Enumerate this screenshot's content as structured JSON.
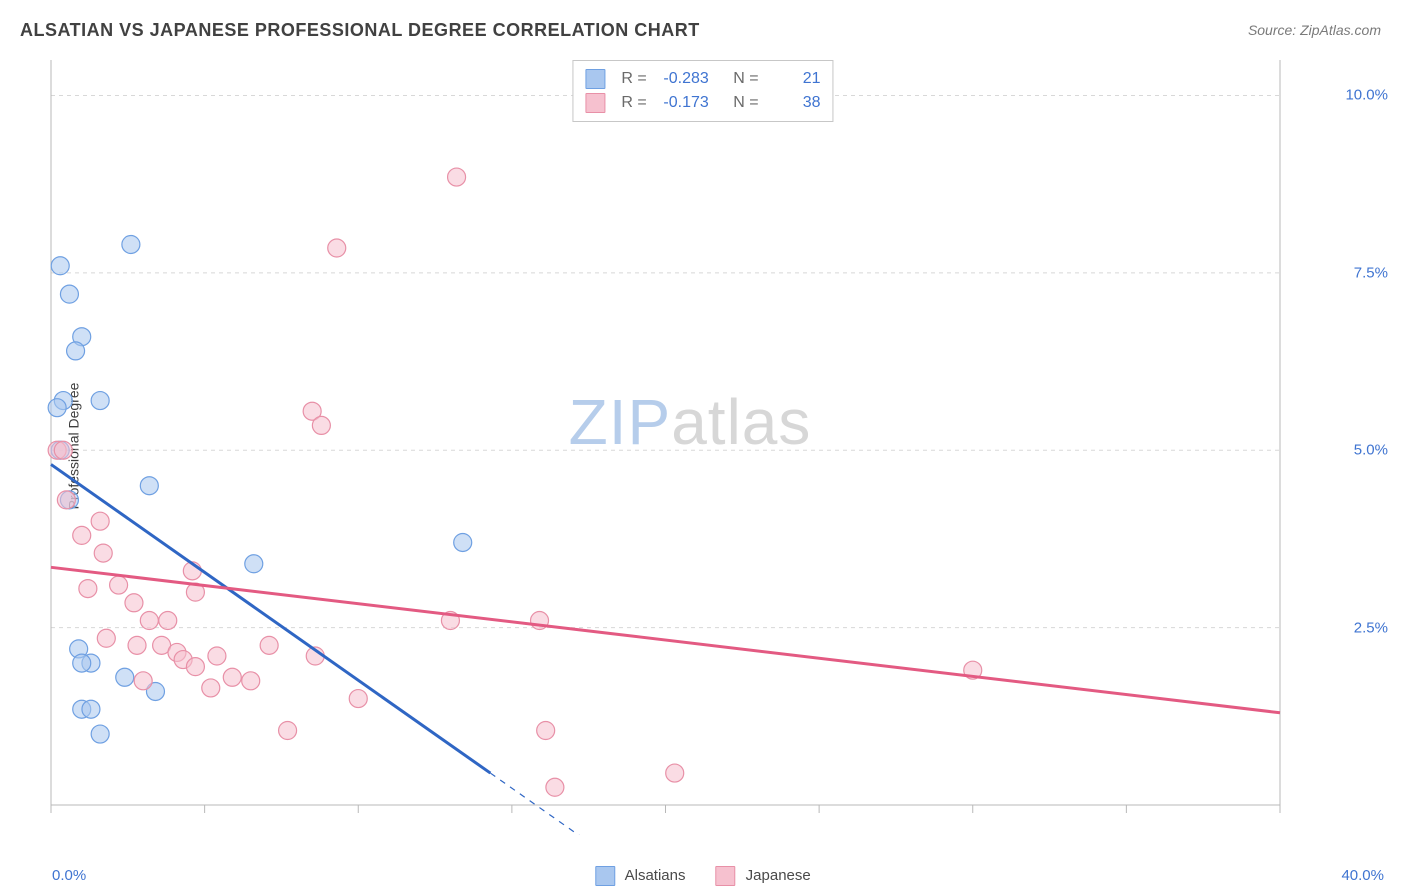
{
  "title": "ALSATIAN VS JAPANESE PROFESSIONAL DEGREE CORRELATION CHART",
  "source_label": "Source: ZipAtlas.com",
  "ylabel": "Professional Degree",
  "watermark": {
    "part1": "ZIP",
    "part2": "atlas"
  },
  "chart": {
    "type": "scatter",
    "background_color": "#ffffff",
    "grid_color": "#d8d8d8",
    "axis_color": "#b8b8b8",
    "axis_label_color": "#3f74d1",
    "xlim": [
      0,
      40
    ],
    "ylim": [
      0,
      10.5
    ],
    "x_tick_step": 5,
    "x_min_label": "0.0%",
    "x_max_label": "40.0%",
    "y_ticks": [
      {
        "value": 2.5,
        "label": "2.5%"
      },
      {
        "value": 5.0,
        "label": "5.0%"
      },
      {
        "value": 7.5,
        "label": "7.5%"
      },
      {
        "value": 10.0,
        "label": "10.0%"
      }
    ],
    "marker_radius": 9,
    "marker_stroke_width": 1.2,
    "marker_fill_opacity": 0.28,
    "trend_line_width": 3,
    "series": [
      {
        "name": "Alsatians",
        "color_stroke": "#6fa0e2",
        "color_fill": "#a9c7ef",
        "line_color": "#2f66c4",
        "r_value": "-0.283",
        "n_value": "21",
        "points": [
          [
            0.3,
            7.6
          ],
          [
            0.6,
            7.2
          ],
          [
            1.0,
            6.6
          ],
          [
            0.8,
            6.4
          ],
          [
            2.6,
            7.9
          ],
          [
            0.4,
            5.7
          ],
          [
            1.6,
            5.7
          ],
          [
            0.2,
            5.6
          ],
          [
            3.2,
            4.5
          ],
          [
            0.3,
            5.0
          ],
          [
            6.6,
            3.4
          ],
          [
            13.4,
            3.7
          ],
          [
            0.9,
            2.2
          ],
          [
            2.4,
            1.8
          ],
          [
            1.0,
            1.35
          ],
          [
            1.3,
            1.35
          ],
          [
            3.4,
            1.6
          ],
          [
            1.6,
            1.0
          ],
          [
            1.3,
            2.0
          ],
          [
            1.0,
            2.0
          ],
          [
            0.6,
            4.3
          ]
        ],
        "trend": {
          "x1": 0,
          "y1": 4.8,
          "x2": 14.3,
          "y2": 0.45,
          "extend_to_x": 18.4
        }
      },
      {
        "name": "Japanese",
        "color_stroke": "#e890a7",
        "color_fill": "#f6c1cf",
        "line_color": "#e35a82",
        "r_value": "-0.173",
        "n_value": "38",
        "points": [
          [
            13.2,
            8.85
          ],
          [
            9.3,
            7.85
          ],
          [
            0.2,
            5.0
          ],
          [
            0.4,
            5.0
          ],
          [
            8.5,
            5.55
          ],
          [
            8.8,
            5.35
          ],
          [
            0.5,
            4.3
          ],
          [
            1.6,
            4.0
          ],
          [
            1.0,
            3.8
          ],
          [
            1.7,
            3.55
          ],
          [
            4.6,
            3.3
          ],
          [
            1.2,
            3.05
          ],
          [
            2.2,
            3.1
          ],
          [
            2.7,
            2.85
          ],
          [
            4.7,
            3.0
          ],
          [
            3.2,
            2.6
          ],
          [
            2.8,
            2.25
          ],
          [
            3.6,
            2.25
          ],
          [
            4.1,
            2.15
          ],
          [
            4.3,
            2.05
          ],
          [
            4.7,
            1.95
          ],
          [
            5.4,
            2.1
          ],
          [
            5.2,
            1.65
          ],
          [
            6.5,
            1.75
          ],
          [
            7.1,
            2.25
          ],
          [
            7.7,
            1.05
          ],
          [
            8.6,
            2.1
          ],
          [
            10.0,
            1.5
          ],
          [
            13.0,
            2.6
          ],
          [
            15.9,
            2.6
          ],
          [
            16.1,
            1.05
          ],
          [
            16.4,
            0.25
          ],
          [
            20.3,
            0.45
          ],
          [
            30.0,
            1.9
          ],
          [
            3.0,
            1.75
          ],
          [
            5.9,
            1.8
          ],
          [
            3.8,
            2.6
          ],
          [
            1.8,
            2.35
          ]
        ],
        "trend": {
          "x1": 0,
          "y1": 3.35,
          "x2": 40,
          "y2": 1.3
        }
      }
    ],
    "top_legend": {
      "r_label": "R =",
      "n_label": "N ="
    },
    "bottom_legend": {
      "items": [
        "Alsatians",
        "Japanese"
      ]
    }
  }
}
